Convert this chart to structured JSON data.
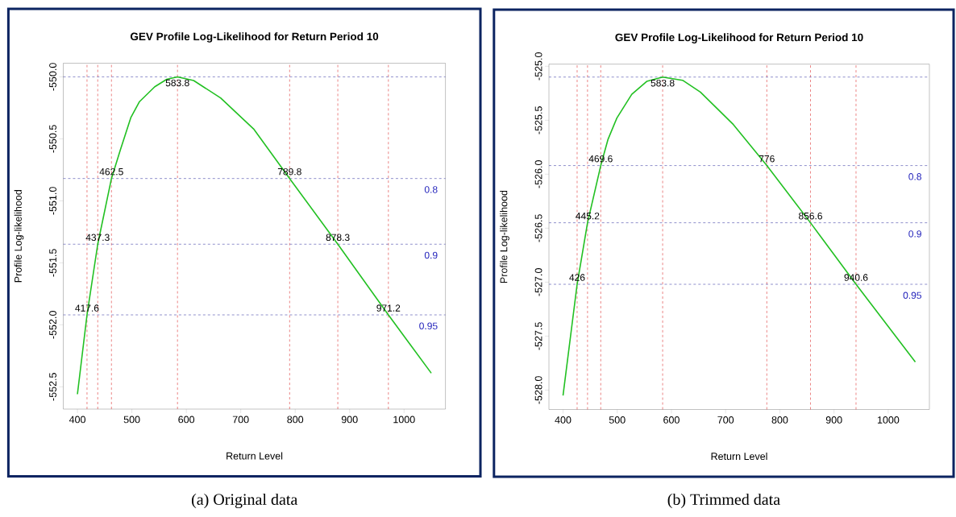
{
  "chart_data": [
    {
      "type": "line",
      "title": "GEV Profile Log-Likelihood for Return Period 10",
      "xlabel": "Return Level",
      "ylabel": "Profile Log-likelihood",
      "color": "#22c022",
      "x": [
        400,
        417.6,
        437.3,
        462.5,
        478.8,
        498,
        514,
        542,
        564,
        583.8,
        613.5,
        663,
        723.6,
        789.8,
        878.3,
        971.2,
        1050
      ],
      "values": [
        -552.56,
        -551.92,
        -551.35,
        -550.82,
        -550.59,
        -550.33,
        -550.2,
        -550.08,
        -550.02,
        -550.0,
        -550.03,
        -550.17,
        -550.42,
        -550.82,
        -551.35,
        -551.92,
        -552.39
      ],
      "xlim": [
        374,
        1076
      ],
      "ylim": [
        -552.68,
        -549.89
      ],
      "xticks": [
        400,
        500,
        600,
        700,
        800,
        900,
        1000
      ],
      "yticks": [
        {
          "value": -550,
          "label": "-550.0"
        },
        -550.5,
        {
          "value": -551,
          "label": "-551.0"
        },
        -551.5,
        {
          "value": -552,
          "label": "-552.0"
        },
        -552.5
      ],
      "ref_lines": [
        {
          "axis": "x",
          "value": 417.6,
          "color": "#dd3333",
          "line_style": "dashed"
        },
        {
          "axis": "x",
          "value": 437.3,
          "color": "#dd3333",
          "line_style": "dashed"
        },
        {
          "axis": "x",
          "value": 462.5,
          "color": "#dd3333",
          "line_style": "dashed"
        },
        {
          "axis": "x",
          "value": 583.8,
          "color": "#dd3333",
          "line_style": "dashed"
        },
        {
          "axis": "x",
          "value": 789.8,
          "color": "#dd3333",
          "line_style": "dashed"
        },
        {
          "axis": "x",
          "value": 878.3,
          "color": "#dd3333",
          "line_style": "dashed"
        },
        {
          "axis": "x",
          "value": 971.2,
          "color": "#dd3333",
          "line_style": "dashed"
        },
        {
          "axis": "y",
          "value": -550.0,
          "color": "#4444aa",
          "line_style": "dashed"
        },
        {
          "axis": "y",
          "value": -550.82,
          "color": "#4444aa",
          "line_style": "dashed"
        },
        {
          "axis": "y",
          "value": -551.35,
          "color": "#4444aa",
          "line_style": "dashed"
        },
        {
          "axis": "y",
          "value": -551.92,
          "color": "#4444aa",
          "line_style": "dashed"
        }
      ],
      "annotations": [
        {
          "text": "583.8",
          "x": 583.8,
          "y": -550.0
        },
        {
          "text": "462.5",
          "x": 462.5,
          "y": -550.82
        },
        {
          "text": "789.8",
          "x": 789.8,
          "y": -550.82
        },
        {
          "text": "437.3",
          "x": 437.3,
          "y": -551.35
        },
        {
          "text": "878.3",
          "x": 878.3,
          "y": -551.35
        },
        {
          "text": "417.6",
          "x": 417.6,
          "y": -551.92
        },
        {
          "text": "971.2",
          "x": 971.2,
          "y": -551.92
        },
        {
          "text": "0.8",
          "y": -550.82
        },
        {
          "text": "0.9",
          "y": -551.35
        },
        {
          "text": "0.95",
          "y": -551.92
        },
        "(a) Original data"
      ]
    },
    {
      "type": "line",
      "title": "GEV Profile Log-Likelihood for Return Period 10",
      "xlabel": "Return Level",
      "ylabel": "Profile Log-likelihood",
      "color": "#22c022",
      "x": [
        400,
        426,
        445.2,
        469.6,
        482.8,
        499.3,
        526.8,
        554.4,
        583.8,
        620.6,
        653.5,
        714.3,
        776,
        856.6,
        940.6,
        1050
      ],
      "values": [
        -528.05,
        -527.02,
        -526.45,
        -525.92,
        -525.68,
        -525.48,
        -525.26,
        -525.14,
        -525.1,
        -525.13,
        -525.24,
        -525.54,
        -525.92,
        -526.45,
        -527.02,
        -527.74
      ],
      "xlim": [
        374,
        1076
      ],
      "ylim": [
        -528.18,
        -524.98
      ],
      "xticks": [
        400,
        500,
        600,
        700,
        800,
        900,
        1000
      ],
      "yticks": [
        {
          "value": -525,
          "label": "-525.0"
        },
        -525.5,
        {
          "value": -526,
          "label": "-526.0"
        },
        -526.5,
        {
          "value": -527,
          "label": "-527.0"
        },
        -527.5,
        {
          "value": -528,
          "label": "-528.0"
        }
      ],
      "ref_lines": [
        {
          "axis": "x",
          "value": 426,
          "color": "#dd3333",
          "line_style": "dashed"
        },
        {
          "axis": "x",
          "value": 445.2,
          "color": "#dd3333",
          "line_style": "dashed"
        },
        {
          "axis": "x",
          "value": 469.6,
          "color": "#dd3333",
          "line_style": "dashed"
        },
        {
          "axis": "x",
          "value": 583.8,
          "color": "#dd3333",
          "line_style": "dashed"
        },
        {
          "axis": "x",
          "value": 776,
          "color": "#dd3333",
          "line_style": "dashed"
        },
        {
          "axis": "x",
          "value": 856.6,
          "color": "#dd3333",
          "line_style": "dashed"
        },
        {
          "axis": "x",
          "value": 940.6,
          "color": "#dd3333",
          "line_style": "dashed"
        },
        {
          "axis": "y",
          "value": -525.1,
          "color": "#4444aa",
          "line_style": "dashed"
        },
        {
          "axis": "y",
          "value": -525.92,
          "color": "#4444aa",
          "line_style": "dashed"
        },
        {
          "axis": "y",
          "value": -526.45,
          "color": "#4444aa",
          "line_style": "dashed"
        },
        {
          "axis": "y",
          "value": -527.02,
          "color": "#4444aa",
          "line_style": "dashed"
        }
      ],
      "annotations": [
        {
          "text": "583.8",
          "x": 583.8,
          "y": -525.1
        },
        {
          "text": "469.6",
          "x": 469.6,
          "y": -525.92
        },
        {
          "text": "776",
          "x": 776,
          "y": -525.92
        },
        {
          "text": "445.2",
          "x": 445.2,
          "y": -526.45
        },
        {
          "text": "856.6",
          "x": 856.6,
          "y": -526.45
        },
        {
          "text": "426",
          "x": 426,
          "y": -527.02
        },
        {
          "text": "940.6",
          "x": 940.6,
          "y": -527.02
        },
        {
          "text": "0.8",
          "y": -525.92
        },
        {
          "text": "0.9",
          "y": -526.45
        },
        {
          "text": "0.95",
          "y": -527.02
        },
        "(b) Trimmed data"
      ]
    }
  ]
}
